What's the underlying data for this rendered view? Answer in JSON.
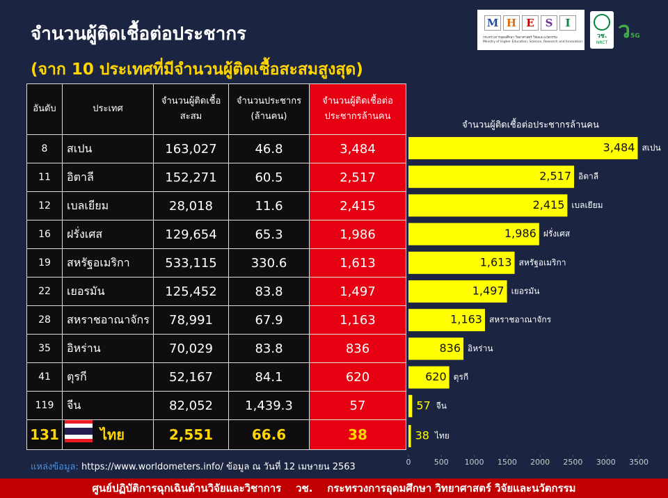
{
  "header": {
    "title": "จำนวนผู้ติดเชื้อต่อประชากร",
    "subtitle": "(จาก 10 ประเทศที่มีจำนวนผู้ติดเชื้อสะสมสูงสุด)"
  },
  "logo": {
    "letters": [
      "M",
      "H",
      "E",
      "S",
      "I"
    ],
    "line1": "กระทรวงการอุดมศึกษา วิทยาศาสตร์ วิจัยและนวัตกรรม",
    "line2": "Ministry of Higher Education, Science, Research and Innovation",
    "nrct_th": "วช.",
    "nrct_en": "NRCT",
    "tag": "5G"
  },
  "table": {
    "columns": [
      "อันดับ",
      "ประเทศ",
      "จำนวนผู้ติดเชื้อสะสม",
      "จำนวนประชากร (ล้านคน)",
      "จำนวนผู้ติดเชื้อต่อประชากรล้านคน"
    ],
    "rows": [
      [
        "8",
        "สเปน",
        "163,027",
        "46.8",
        "3,484"
      ],
      [
        "11",
        "อิตาลี",
        "152,271",
        "60.5",
        "2,517"
      ],
      [
        "12",
        "เบลเยียม",
        "28,018",
        "11.6",
        "2,415"
      ],
      [
        "16",
        "ฝรั่งเศส",
        "129,654",
        "65.3",
        "1,986"
      ],
      [
        "19",
        "สหรัฐอเมริกา",
        "533,115",
        "330.6",
        "1,613"
      ],
      [
        "22",
        "เยอรมัน",
        "125,452",
        "83.8",
        "1,497"
      ],
      [
        "28",
        "สหราชอาณาจักร",
        "78,991",
        "67.9",
        "1,163"
      ],
      [
        "35",
        "อิหร่าน",
        "70,029",
        "83.8",
        "836"
      ],
      [
        "41",
        "ตุรกี",
        "52,167",
        "84.1",
        "620"
      ],
      [
        "119",
        "จีน",
        "82,052",
        "1,439.3",
        "57"
      ],
      [
        "131",
        "ไทย",
        "2,551",
        "66.6",
        "38"
      ]
    ]
  },
  "chart_data": {
    "type": "bar",
    "orientation": "horizontal",
    "title": "จำนวนผู้ติดเชื้อต่อประชากรล้านคน",
    "categories": [
      "สเปน",
      "อิตาลี",
      "เบลเยียม",
      "ฝรั่งเศส",
      "สหรัฐอเมริกา",
      "เยอรมัน",
      "สหราชอาณาจักร",
      "อิหร่าน",
      "ตุรกี",
      "จีน",
      "ไทย"
    ],
    "values": [
      3484,
      2517,
      2415,
      1986,
      1613,
      1497,
      1163,
      836,
      620,
      57,
      38
    ],
    "value_labels": [
      "3,484",
      "2,517",
      "2,415",
      "1,986",
      "1,613",
      "1,497",
      "1,163",
      "836",
      "620",
      "57",
      "38"
    ],
    "color": "#ffff00",
    "xlim": [
      0,
      3500
    ],
    "xticks": [
      0,
      500,
      1000,
      1500,
      2000,
      2500,
      3000,
      3500
    ]
  },
  "footer": {
    "source_label": "แหล่งข้อมูล:",
    "source": "https://www.worldometers.info/ ข้อมูล ณ วันที่ 12 เมษายน 2563",
    "bar": "ศูนย์ปฏิบัติการฉุกเฉินด้านวิจัยและวิชาการ    วช.    กระทรวงการอุดมศึกษา วิทยาศาสตร์ วิจัยและนวัตกรรม"
  }
}
